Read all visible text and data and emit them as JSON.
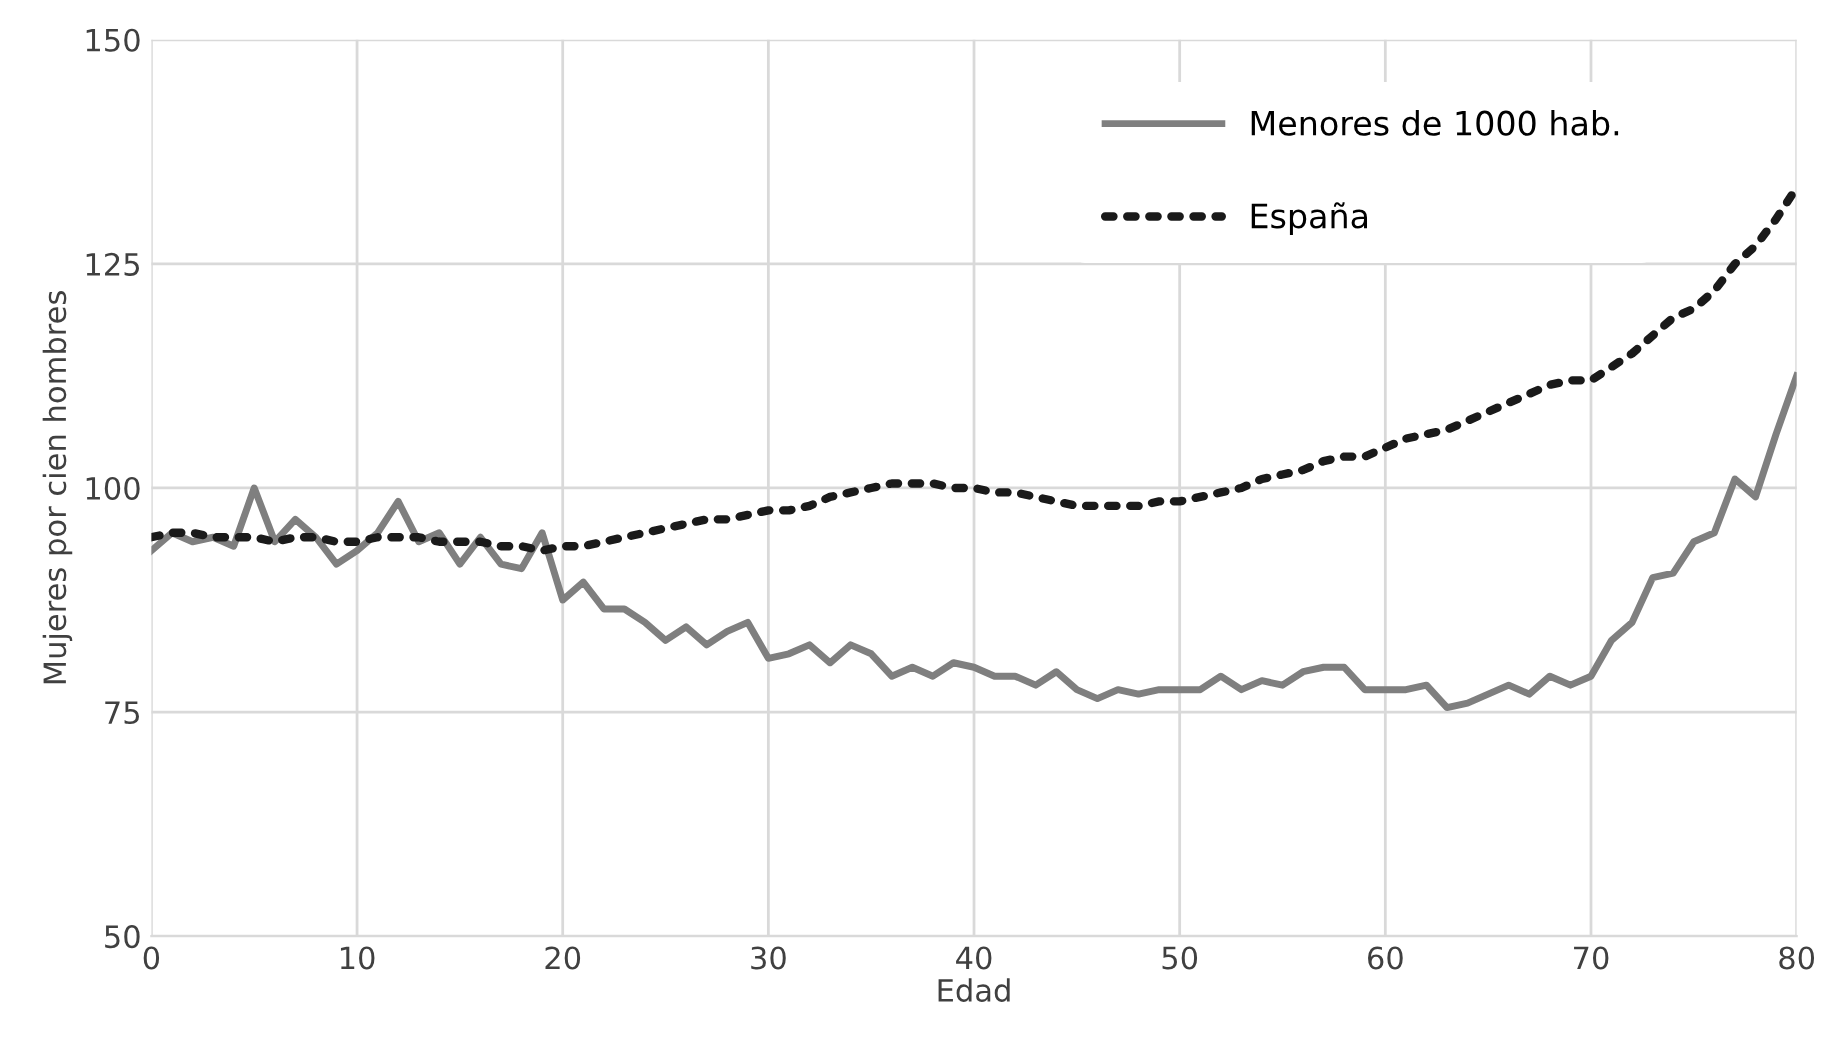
{
  "chart_data": {
    "type": "line",
    "xlabel": "Edad",
    "ylabel": "Mujeres por cien hombres",
    "x": [
      0,
      1,
      2,
      3,
      4,
      5,
      6,
      7,
      8,
      9,
      10,
      11,
      12,
      13,
      14,
      15,
      16,
      17,
      18,
      19,
      20,
      21,
      22,
      23,
      24,
      25,
      26,
      27,
      28,
      29,
      30,
      31,
      32,
      33,
      34,
      35,
      36,
      37,
      38,
      39,
      40,
      41,
      42,
      43,
      44,
      45,
      46,
      47,
      48,
      49,
      50,
      51,
      52,
      53,
      54,
      55,
      56,
      57,
      58,
      59,
      60,
      61,
      62,
      63,
      64,
      65,
      66,
      67,
      68,
      69,
      70,
      71,
      72,
      73,
      74,
      75,
      76,
      77,
      78,
      79,
      80
    ],
    "series": [
      {
        "name": "Menores de 1000 hab.",
        "color": "#7f7f7f",
        "line_style": "solid",
        "values": [
          93,
          95,
          94,
          94.5,
          93.5,
          100,
          94,
          96.5,
          94.5,
          91.5,
          93,
          95,
          98.5,
          94,
          95,
          91.5,
          94.5,
          91.5,
          91,
          95,
          87.5,
          89.5,
          86.5,
          86.5,
          85,
          83,
          84.5,
          82.5,
          84,
          85,
          81,
          81.5,
          82.5,
          80.5,
          82.5,
          81.5,
          79,
          80,
          79,
          80.5,
          80,
          79,
          79,
          78,
          79.5,
          77.5,
          76.5,
          77.5,
          77,
          77.5,
          77.5,
          77.5,
          79,
          77.5,
          78.5,
          78,
          79.5,
          80,
          80,
          77.5,
          77.5,
          77.5,
          78,
          75.5,
          76,
          77,
          78,
          77,
          79,
          78,
          79,
          83,
          85,
          90,
          90.5,
          94,
          95,
          101,
          99,
          106,
          112.5
        ]
      },
      {
        "name": "España",
        "color": "#1a1a1a",
        "line_style": "dotted",
        "values": [
          94.5,
          95,
          95,
          94.5,
          94.5,
          94.5,
          94,
          94.5,
          94.5,
          94,
          94,
          94.5,
          94.5,
          94.5,
          94,
          94,
          94,
          93.5,
          93.5,
          93,
          93.5,
          93.5,
          94,
          94.5,
          95,
          95.5,
          96,
          96.5,
          96.5,
          97,
          97.5,
          97.5,
          98,
          99,
          99.5,
          100,
          100.5,
          100.5,
          100.5,
          100,
          100,
          99.5,
          99.5,
          99,
          98.5,
          98,
          98,
          98,
          98,
          98.5,
          98.5,
          99,
          99.5,
          100,
          101,
          101.5,
          102,
          103,
          103.5,
          103.5,
          104.5,
          105.5,
          106,
          106.5,
          107.5,
          108.5,
          109.5,
          110.5,
          111.5,
          112,
          112,
          113.5,
          115,
          117,
          119,
          120,
          122,
          125,
          127,
          130,
          133.5
        ]
      }
    ],
    "xlim": [
      0,
      80
    ],
    "xticks": [
      0,
      10,
      20,
      30,
      40,
      50,
      60,
      70,
      80
    ],
    "ylim": [
      50,
      150
    ],
    "yticks": [
      50,
      75,
      100,
      125,
      150
    ],
    "grid": true,
    "legend": "top right",
    "marker": "none"
  }
}
